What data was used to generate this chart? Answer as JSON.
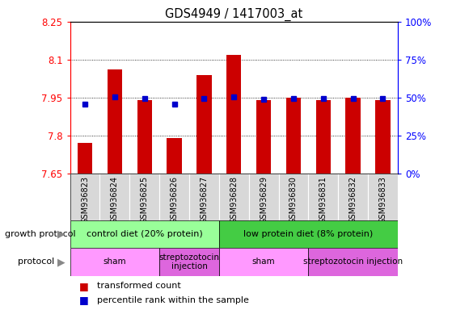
{
  "title": "GDS4949 / 1417003_at",
  "samples": [
    "GSM936823",
    "GSM936824",
    "GSM936825",
    "GSM936826",
    "GSM936827",
    "GSM936828",
    "GSM936829",
    "GSM936830",
    "GSM936831",
    "GSM936832",
    "GSM936833"
  ],
  "transformed_count": [
    7.77,
    8.06,
    7.94,
    7.79,
    8.04,
    8.12,
    7.94,
    7.95,
    7.94,
    7.95,
    7.94
  ],
  "percentile_rank": [
    7.924,
    7.952,
    7.948,
    7.924,
    7.948,
    7.952,
    7.943,
    7.948,
    7.948,
    7.948,
    7.948
  ],
  "ylim_left": [
    7.65,
    8.25
  ],
  "yticks_left": [
    7.65,
    7.8,
    7.95,
    8.1,
    8.25
  ],
  "yticks_right_vals": [
    0,
    25,
    50,
    75,
    100
  ],
  "bar_color": "#cc0000",
  "dot_color": "#0000cc",
  "bar_bottom": 7.65,
  "growth_protocol_groups": [
    {
      "label": "control diet (20% protein)",
      "start": 0,
      "end": 5,
      "color": "#99ff99"
    },
    {
      "label": "low protein diet (8% protein)",
      "start": 5,
      "end": 11,
      "color": "#44cc44"
    }
  ],
  "protocol_groups": [
    {
      "label": "sham",
      "start": 0,
      "end": 3,
      "color": "#ff99ff"
    },
    {
      "label": "streptozotocin\ninjection",
      "start": 3,
      "end": 5,
      "color": "#dd66dd"
    },
    {
      "label": "sham",
      "start": 5,
      "end": 8,
      "color": "#ff99ff"
    },
    {
      "label": "streptozotocin injection",
      "start": 8,
      "end": 11,
      "color": "#dd66dd"
    }
  ],
  "background_color": "#ffffff"
}
